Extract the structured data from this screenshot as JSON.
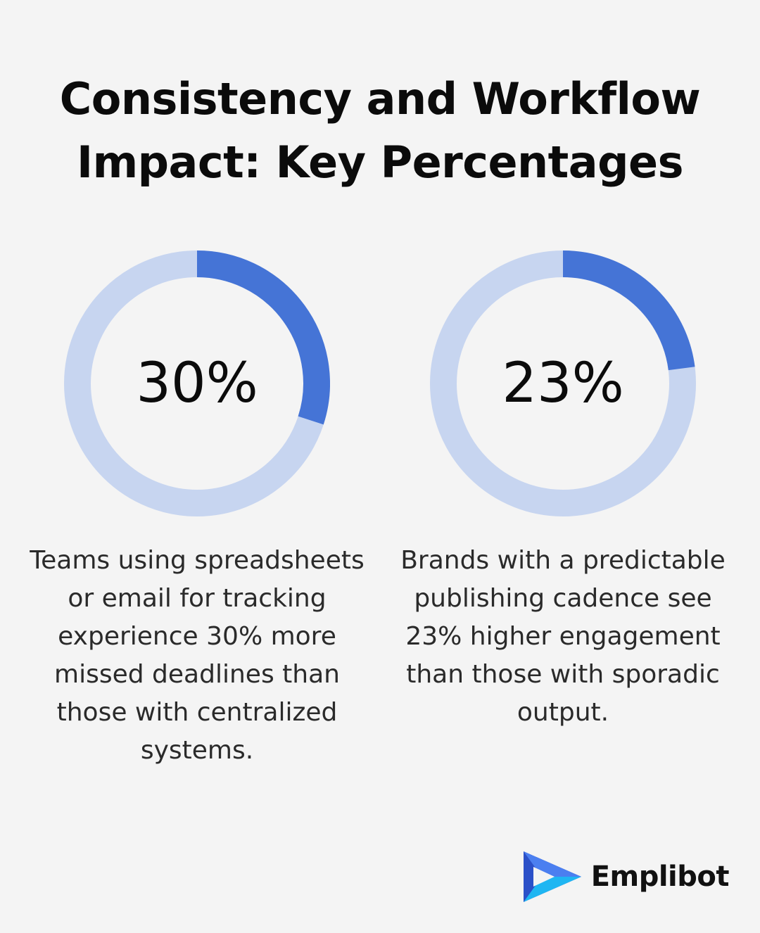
{
  "title": {
    "line1": "Consistency and Workflow",
    "line2": "Impact: Key Percentages"
  },
  "colors": {
    "track": "#c7d5f0",
    "fill": "#4574d6",
    "background": "#f4f4f4"
  },
  "chart_data": [
    {
      "type": "pie",
      "style": "donut",
      "value": 30,
      "max": 100,
      "label": "30%",
      "caption": "Teams using spreadsheets or email for tracking experience 30% more missed deadlines than those with centralized systems."
    },
    {
      "type": "pie",
      "style": "donut",
      "value": 23,
      "max": 100,
      "label": "23%",
      "caption": "Brands with a predictable publishing cadence see 23% higher engagement than those with sporadic output."
    }
  ],
  "brand": {
    "name": "Emplibot",
    "icon": "play-arrow-logo-icon"
  }
}
